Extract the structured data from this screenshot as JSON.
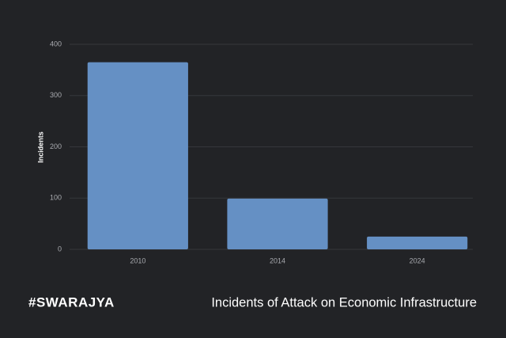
{
  "chart_data": {
    "type": "bar",
    "y_label": "Incidents",
    "categories": [
      "2010",
      "2014",
      "2024"
    ],
    "values": [
      365,
      99,
      25
    ],
    "color": "#6590c4",
    "ylim": [
      0,
      400
    ],
    "yticks": [
      0,
      100,
      200,
      300,
      400
    ],
    "grid": true
  },
  "footer": {
    "brand": "#SWARAJYA",
    "caption": "Incidents of Attack on Economic Infrastructure"
  }
}
